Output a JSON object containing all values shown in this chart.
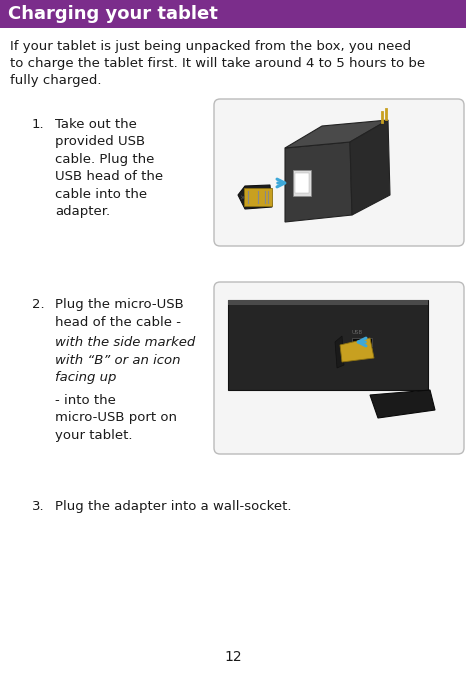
{
  "title": "Charging your tablet",
  "title_bg_color": "#7B2D8B",
  "title_text_color": "#FFFFFF",
  "body_bg_color": "#FFFFFF",
  "body_text_color": "#1A1A1A",
  "intro_text": "If your tablet is just being unpacked from the box, you need\nto charge the tablet first. It will take around 4 to 5 hours to be\nfully charged.",
  "step1_num": "1.",
  "step1_text": "Take out the\nprovided USB\ncable. Plug the\nUSB head of the\ncable into the\nadapter.",
  "step2_num": "2.",
  "step2_text_a": "Plug the micro-USB\nhead of the cable -",
  "step2_text_b": "with the side marked\nwith “B” or an icon\nfacing up",
  "step2_text_c": "- into the\nmicro-USB port on\nyour tablet.",
  "step3_num": "3.",
  "step3_text": "Plug the adapter into a wall-socket.",
  "page_number": "12",
  "title_fontsize": 13,
  "body_fontsize": 9.5,
  "page_fontsize": 10,
  "arrow_color": "#3EA8D8",
  "img1_box_color": "#F5F5F5",
  "img1_box_border": "#BBBBBB",
  "img2_box_color": "#F5F5F5",
  "img2_box_border": "#BBBBBB",
  "adapter_dark": "#2C2C2C",
  "adapter_mid": "#404040",
  "usb_gold": "#C8A020",
  "usb_dark": "#1A1A1A",
  "tablet_dark": "#252525",
  "white": "#FFFFFF",
  "title_bar_height": 28
}
